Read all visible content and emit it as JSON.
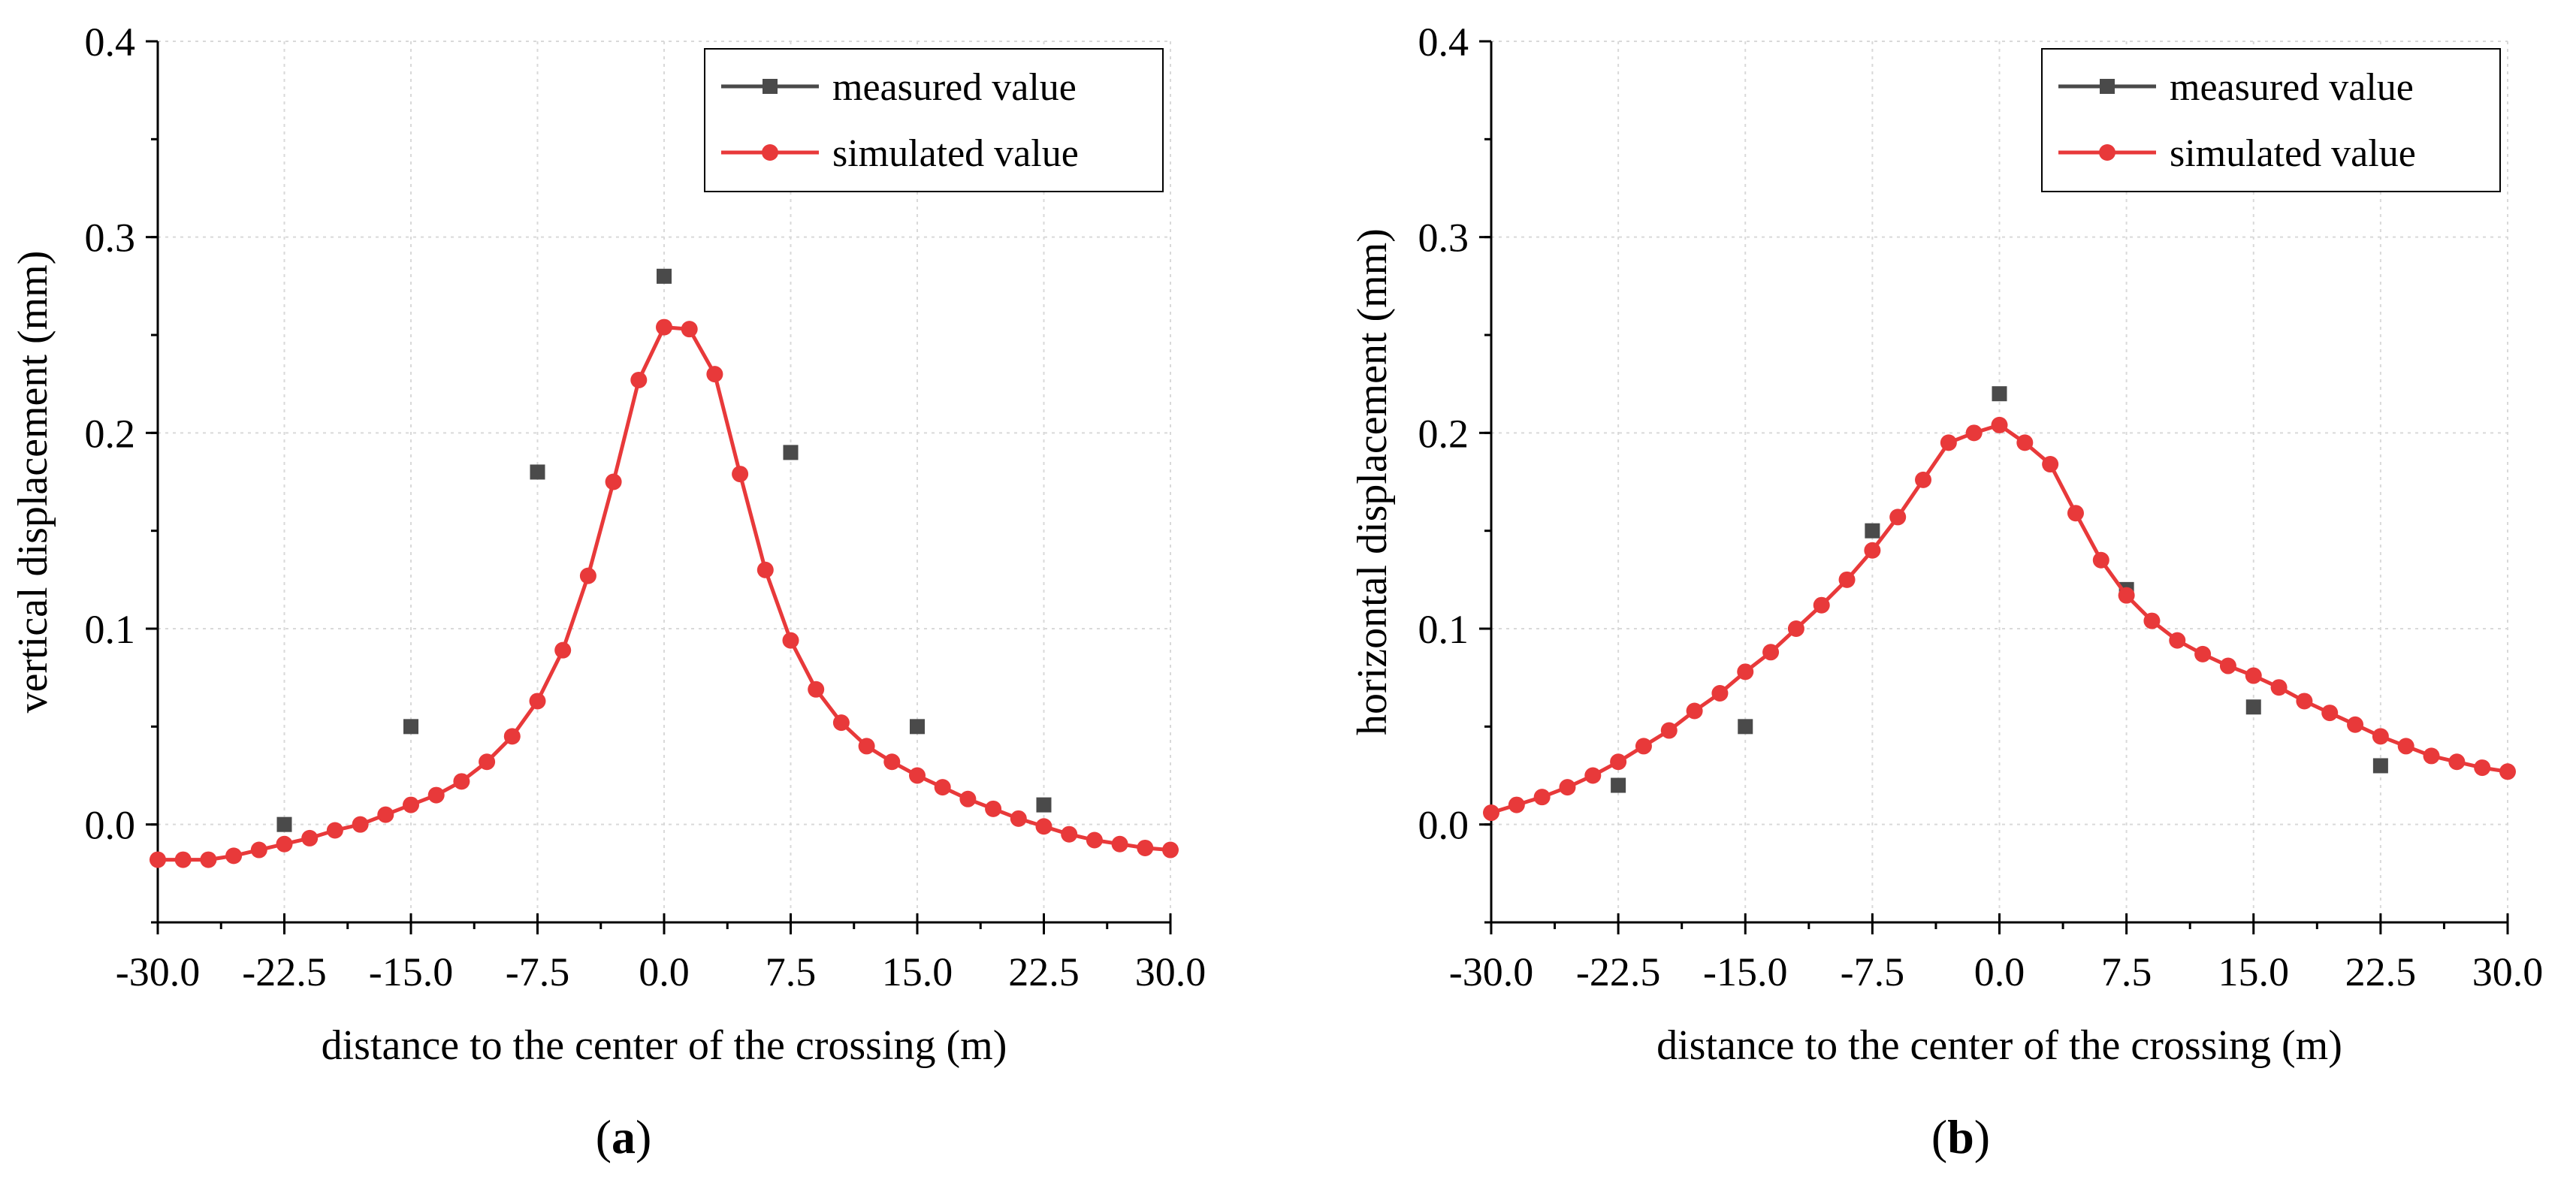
{
  "chart_data": [
    {
      "type": "line",
      "panel_label": "a",
      "caption_open": "(",
      "caption_close": ")",
      "xlabel": "distance to the center of the crossing (m)",
      "ylabel": "vertical displacement (mm)",
      "xlim": [
        -30,
        30
      ],
      "ylim": [
        -0.05,
        0.4
      ],
      "xticks": [
        -30,
        -22.5,
        -15,
        -7.5,
        0,
        7.5,
        15,
        22.5,
        30
      ],
      "xtick_labels": [
        "-30.0",
        "-22.5",
        "-15.0",
        "-7.5",
        "0.0",
        "7.5",
        "15.0",
        "22.5",
        "30.0"
      ],
      "yticks": [
        0,
        0.1,
        0.2,
        0.3,
        0.4
      ],
      "ytick_labels": [
        "0.0",
        "0.1",
        "0.2",
        "0.3",
        "0.4"
      ],
      "grid": true,
      "legend_position": "top-right",
      "series": [
        {
          "name": "measured value",
          "color": "#4a4a4a",
          "marker": "square",
          "line": false,
          "x": [
            -22.5,
            -15,
            -7.5,
            0,
            7.5,
            15,
            22.5
          ],
          "y": [
            0.0,
            0.05,
            0.18,
            0.28,
            0.19,
            0.05,
            0.01
          ]
        },
        {
          "name": "simulated value",
          "color": "#e8393a",
          "marker": "circle",
          "line": true,
          "x": [
            -30,
            -28.5,
            -27,
            -25.5,
            -24,
            -22.5,
            -21,
            -19.5,
            -18,
            -16.5,
            -15,
            -13.5,
            -12,
            -10.5,
            -9,
            -7.5,
            -6,
            -4.5,
            -3,
            -1.5,
            0,
            1.5,
            3,
            4.5,
            6,
            7.5,
            9,
            10.5,
            12,
            13.5,
            15,
            16.5,
            18,
            19.5,
            21,
            22.5,
            24,
            25.5,
            27,
            28.5,
            30
          ],
          "y": [
            -0.018,
            -0.018,
            -0.018,
            -0.016,
            -0.013,
            -0.01,
            -0.007,
            -0.003,
            0.0,
            0.005,
            0.01,
            0.015,
            0.022,
            0.032,
            0.045,
            0.063,
            0.089,
            0.127,
            0.175,
            0.227,
            0.254,
            0.253,
            0.23,
            0.179,
            0.13,
            0.094,
            0.069,
            0.052,
            0.04,
            0.032,
            0.025,
            0.019,
            0.013,
            0.008,
            0.003,
            -0.001,
            -0.005,
            -0.008,
            -0.01,
            -0.012,
            -0.013
          ]
        }
      ]
    },
    {
      "type": "line",
      "panel_label": "b",
      "caption_open": "(",
      "caption_close": ")",
      "xlabel": "distance to the center of the crossing (m)",
      "ylabel": "horizontal displacement (mm)",
      "xlim": [
        -30,
        30
      ],
      "ylim": [
        -0.05,
        0.4
      ],
      "xticks": [
        -30,
        -22.5,
        -15,
        -7.5,
        0,
        7.5,
        15,
        22.5,
        30
      ],
      "xtick_labels": [
        "-30.0",
        "-22.5",
        "-15.0",
        "-7.5",
        "0.0",
        "7.5",
        "15.0",
        "22.5",
        "30.0"
      ],
      "yticks": [
        0,
        0.1,
        0.2,
        0.3,
        0.4
      ],
      "ytick_labels": [
        "0.0",
        "0.1",
        "0.2",
        "0.3",
        "0.4"
      ],
      "grid": true,
      "legend_position": "top-right",
      "series": [
        {
          "name": "measured value",
          "color": "#4a4a4a",
          "marker": "square",
          "line": false,
          "x": [
            -22.5,
            -15,
            -7.5,
            0,
            7.5,
            15,
            22.5
          ],
          "y": [
            0.02,
            0.05,
            0.15,
            0.22,
            0.12,
            0.06,
            0.03
          ]
        },
        {
          "name": "simulated value",
          "color": "#e8393a",
          "marker": "circle",
          "line": true,
          "x": [
            -30,
            -28.5,
            -27,
            -25.5,
            -24,
            -22.5,
            -21,
            -19.5,
            -18,
            -16.5,
            -15,
            -13.5,
            -12,
            -10.5,
            -9,
            -7.5,
            -6,
            -4.5,
            -3,
            -1.5,
            0,
            1.5,
            3,
            4.5,
            6,
            7.5,
            9,
            10.5,
            12,
            13.5,
            15,
            16.5,
            18,
            19.5,
            21,
            22.5,
            24,
            25.5,
            27,
            28.5,
            30
          ],
          "y": [
            0.006,
            0.01,
            0.014,
            0.019,
            0.025,
            0.032,
            0.04,
            0.048,
            0.058,
            0.067,
            0.078,
            0.088,
            0.1,
            0.112,
            0.125,
            0.14,
            0.157,
            0.176,
            0.195,
            0.2,
            0.204,
            0.195,
            0.184,
            0.159,
            0.135,
            0.117,
            0.104,
            0.094,
            0.087,
            0.081,
            0.076,
            0.07,
            0.063,
            0.057,
            0.051,
            0.045,
            0.04,
            0.035,
            0.032,
            0.029,
            0.027
          ]
        }
      ]
    }
  ]
}
